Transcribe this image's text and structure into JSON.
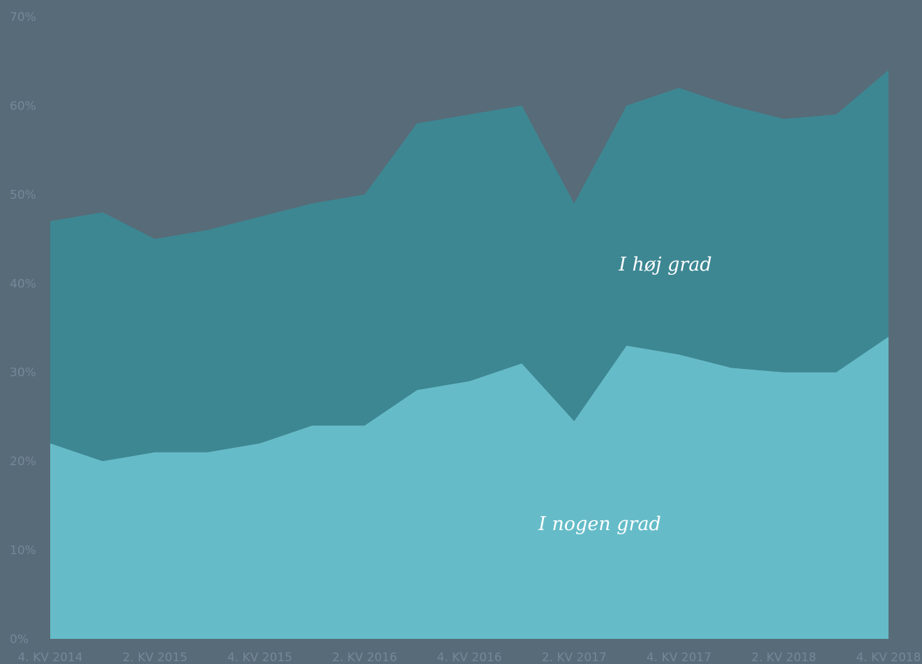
{
  "chart_data": {
    "type": "stacked-area",
    "categories": [
      "4. KV 2014",
      null,
      "2. KV 2015",
      null,
      "4. KV 2015",
      null,
      "2. KV 2016",
      null,
      "4. KV 2016",
      null,
      "2. KV 2017",
      null,
      "4. KV 2017",
      null,
      "2. KV 2018",
      null,
      "4. KV 2018"
    ],
    "series": [
      {
        "name": "I nogen grad",
        "color": "#65bcc8",
        "values": [
          22,
          20,
          21,
          21,
          22,
          24,
          24,
          28,
          29,
          31,
          24.5,
          33,
          32,
          30.5,
          30,
          30,
          34
        ]
      },
      {
        "name": "I høj grad",
        "color": "#3d8793",
        "values": [
          25,
          28,
          24,
          25,
          25.5,
          25,
          26,
          30,
          30,
          29,
          24.5,
          27,
          30,
          29.5,
          28.5,
          29,
          30
        ]
      }
    ],
    "ylim": [
      0,
      70
    ],
    "yticks": [
      {
        "value": 0,
        "label": "0%"
      },
      {
        "value": 10,
        "label": "10%"
      },
      {
        "value": 20,
        "label": "20%"
      },
      {
        "value": 30,
        "label": "30%"
      },
      {
        "value": 40,
        "label": "40%"
      },
      {
        "value": 50,
        "label": "50%"
      },
      {
        "value": 60,
        "label": "60%"
      },
      {
        "value": 70,
        "label": "70%"
      }
    ]
  }
}
